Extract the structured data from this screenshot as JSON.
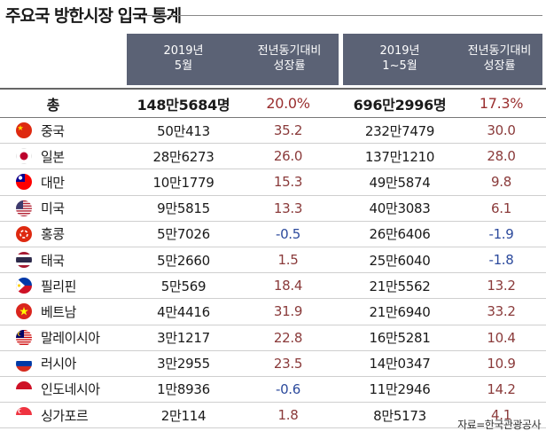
{
  "title": "주요국 방한시장 입국 통계",
  "headers": {
    "may_2019": "2019년\n5월",
    "may_growth": "전년동기대비\n성장률",
    "jan_may_2019": "2019년\n1~5월",
    "jan_may_growth": "전년동기대비\n성장률"
  },
  "total": {
    "label": "총",
    "may": "148만5684명",
    "may_growth": "20.0%",
    "ytd": "696만2996명",
    "ytd_growth": "17.3%"
  },
  "rows": [
    {
      "country": "중국",
      "flag": "china-flag-icon",
      "may": "50만413",
      "may_growth": "35.2",
      "ytd": "232만7479",
      "ytd_growth": "30.0"
    },
    {
      "country": "일본",
      "flag": "japan-flag-icon",
      "may": "28만6273",
      "may_growth": "26.0",
      "ytd": "137만1210",
      "ytd_growth": "28.0"
    },
    {
      "country": "대만",
      "flag": "taiwan-flag-icon",
      "may": "10만1779",
      "may_growth": "15.3",
      "ytd": "49만5874",
      "ytd_growth": "9.8"
    },
    {
      "country": "미국",
      "flag": "usa-flag-icon",
      "may": "9만5815",
      "may_growth": "13.3",
      "ytd": "40만3083",
      "ytd_growth": "6.1"
    },
    {
      "country": "홍콩",
      "flag": "hongkong-flag-icon",
      "may": "5만7026",
      "may_growth": "-0.5",
      "ytd": "26만6406",
      "ytd_growth": "-1.9"
    },
    {
      "country": "태국",
      "flag": "thailand-flag-icon",
      "may": "5만2660",
      "may_growth": "1.5",
      "ytd": "25만6040",
      "ytd_growth": "-1.8"
    },
    {
      "country": "필리핀",
      "flag": "philippines-flag-icon",
      "may": "5만569",
      "may_growth": "18.4",
      "ytd": "21만5562",
      "ytd_growth": "13.2"
    },
    {
      "country": "베트남",
      "flag": "vietnam-flag-icon",
      "may": "4만4416",
      "may_growth": "31.9",
      "ytd": "21만6940",
      "ytd_growth": "33.2"
    },
    {
      "country": "말레이시아",
      "flag": "malaysia-flag-icon",
      "may": "3만1217",
      "may_growth": "22.8",
      "ytd": "16만5281",
      "ytd_growth": "10.4"
    },
    {
      "country": "러시아",
      "flag": "russia-flag-icon",
      "may": "3만2955",
      "may_growth": "23.5",
      "ytd": "14만0347",
      "ytd_growth": "10.9"
    },
    {
      "country": "인도네시아",
      "flag": "indonesia-flag-icon",
      "may": "1만8936",
      "may_growth": "-0.6",
      "ytd": "11만2946",
      "ytd_growth": "14.2"
    },
    {
      "country": "싱가포르",
      "flag": "singapore-flag-icon",
      "may": "2만114",
      "may_growth": "1.8",
      "ytd": "8만5173",
      "ytd_growth": "4.1"
    }
  ],
  "source": "자료=한국관광공사",
  "colors": {
    "header_bg": "#5b6275",
    "positive": "#8a3a3a",
    "negative": "#2c4a9c"
  }
}
